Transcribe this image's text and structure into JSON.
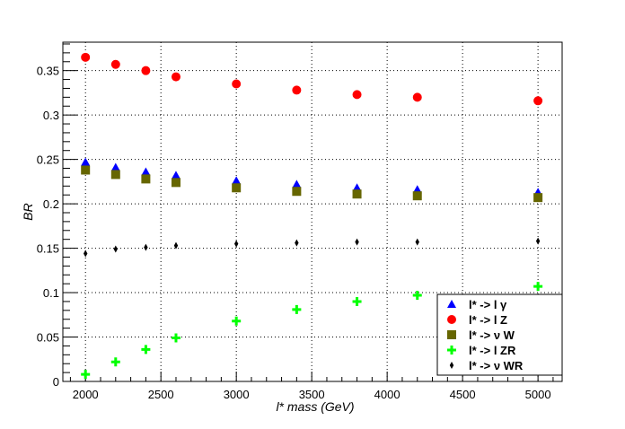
{
  "chart_data": {
    "type": "scatter",
    "xlabel": "l* mass (GeV)",
    "ylabel": "BR",
    "xlim": [
      1850,
      5160
    ],
    "ylim": [
      0,
      0.382
    ],
    "grid": true,
    "legend_position": "bottom-right",
    "x_ticks": [
      2000,
      2500,
      3000,
      3500,
      4000,
      4500,
      5000
    ],
    "y_ticks": [
      0,
      0.05,
      0.1,
      0.15,
      0.2,
      0.25,
      0.3,
      0.35
    ],
    "x_tick_labels": [
      "2000",
      "2500",
      "3000",
      "3500",
      "4000",
      "4500",
      "5000"
    ],
    "y_tick_labels": [
      "0",
      "0.05",
      "0.1",
      "0.15",
      "0.2",
      "0.25",
      "0.3",
      "0.35"
    ],
    "x": [
      2000,
      2200,
      2400,
      2600,
      3000,
      3400,
      3800,
      4200,
      5000
    ],
    "series": [
      {
        "name": "l* -> l γ",
        "marker": "triangle",
        "color": "#0000ff",
        "values": [
          0.247,
          0.241,
          0.236,
          0.232,
          0.226,
          0.222,
          0.218,
          0.216,
          0.213
        ]
      },
      {
        "name": "l* -> l Z",
        "marker": "circle",
        "color": "#ff0000",
        "values": [
          0.365,
          0.357,
          0.35,
          0.343,
          0.335,
          0.328,
          0.323,
          0.32,
          0.316
        ]
      },
      {
        "name": "l* -> ν W",
        "marker": "square",
        "color": "#666600",
        "values": [
          0.238,
          0.233,
          0.228,
          0.224,
          0.218,
          0.214,
          0.211,
          0.209,
          0.207
        ]
      },
      {
        "name": "l* -> l ZR",
        "marker": "cross",
        "color": "#00ff00",
        "values": [
          0.008,
          0.022,
          0.036,
          0.049,
          0.068,
          0.081,
          0.09,
          0.097,
          0.107
        ]
      },
      {
        "name": "l* -> ν WR",
        "marker": "diamond",
        "color": "#000000",
        "values": [
          0.144,
          0.149,
          0.151,
          0.153,
          0.155,
          0.156,
          0.157,
          0.157,
          0.158
        ]
      }
    ]
  }
}
